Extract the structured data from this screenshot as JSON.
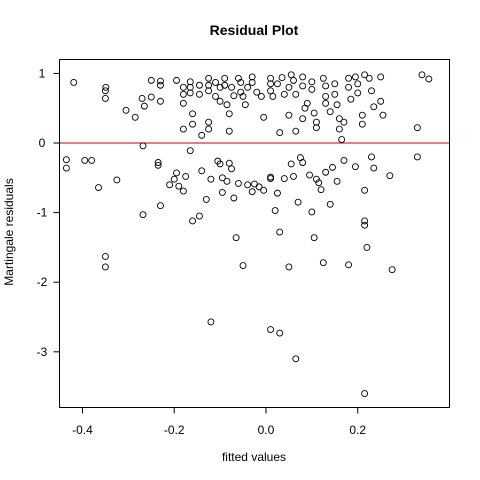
{
  "chart_data": {
    "type": "scatter",
    "title": "Residual Plot",
    "xlabel": "fitted values",
    "ylabel": "Martingale residuals",
    "xlim": [
      -0.45,
      0.4
    ],
    "ylim": [
      -3.8,
      1.2
    ],
    "xticks": [
      -0.4,
      -0.2,
      0.0,
      0.2
    ],
    "xtick_labels": [
      "-0.4",
      "-0.2",
      "0.0",
      "0.2"
    ],
    "yticks": [
      -3,
      -2,
      -1,
      0,
      1
    ],
    "ytick_labels": [
      "-3",
      "-2",
      "-1",
      "0",
      "1"
    ],
    "reference_line": {
      "y": 0,
      "color": "#c00000"
    },
    "grid": false,
    "legend": "none",
    "series": [
      {
        "points": [
          [
            -0.419,
            0.87
          ],
          [
            -0.349,
            0.8
          ],
          [
            -0.35,
            0.75
          ],
          [
            -0.35,
            0.64
          ],
          [
            -0.305,
            0.47
          ],
          [
            -0.285,
            0.37
          ],
          [
            -0.27,
            0.64
          ],
          [
            -0.265,
            0.53
          ],
          [
            -0.25,
            0.9
          ],
          [
            -0.25,
            0.66
          ],
          [
            -0.23,
            0.89
          ],
          [
            -0.23,
            0.83
          ],
          [
            -0.23,
            0.6
          ],
          [
            -0.195,
            0.9
          ],
          [
            -0.18,
            0.8
          ],
          [
            -0.18,
            0.7
          ],
          [
            -0.18,
            0.57
          ],
          [
            -0.18,
            0.2
          ],
          [
            -0.165,
            0.88
          ],
          [
            -0.165,
            0.8
          ],
          [
            -0.165,
            0.72
          ],
          [
            -0.16,
            0.42
          ],
          [
            -0.16,
            0.27
          ],
          [
            -0.145,
            0.83
          ],
          [
            -0.145,
            0.7
          ],
          [
            -0.14,
            0.11
          ],
          [
            -0.125,
            0.93
          ],
          [
            -0.125,
            0.83
          ],
          [
            -0.125,
            0.75
          ],
          [
            -0.125,
            0.3
          ],
          [
            -0.125,
            0.2
          ],
          [
            -0.11,
            0.87
          ],
          [
            -0.11,
            0.67
          ],
          [
            -0.1,
            0.8
          ],
          [
            -0.1,
            0.6
          ],
          [
            -0.09,
            0.93
          ],
          [
            -0.09,
            0.83
          ],
          [
            -0.085,
            0.55
          ],
          [
            -0.08,
            0.42
          ],
          [
            -0.08,
            0.17
          ],
          [
            -0.075,
            0.8
          ],
          [
            -0.07,
            0.68
          ],
          [
            -0.06,
            0.93
          ],
          [
            -0.055,
            0.87
          ],
          [
            -0.055,
            0.73
          ],
          [
            -0.05,
            0.67
          ],
          [
            -0.045,
            0.55
          ],
          [
            -0.04,
            0.8
          ],
          [
            -0.03,
            0.95
          ],
          [
            -0.03,
            0.87
          ],
          [
            -0.02,
            0.73
          ],
          [
            -0.01,
            0.67
          ],
          [
            -0.005,
            0.37
          ],
          [
            0.01,
            0.93
          ],
          [
            0.01,
            0.85
          ],
          [
            0.01,
            0.75
          ],
          [
            0.015,
            0.67
          ],
          [
            0.025,
            0.85
          ],
          [
            0.03,
            0.15
          ],
          [
            0.035,
            0.94
          ],
          [
            0.04,
            0.7
          ],
          [
            0.05,
            0.8
          ],
          [
            0.05,
            0.4
          ],
          [
            0.055,
            0.98
          ],
          [
            0.06,
            0.9
          ],
          [
            0.065,
            0.7
          ],
          [
            0.065,
            0.17
          ],
          [
            0.08,
            0.95
          ],
          [
            0.08,
            0.82
          ],
          [
            0.08,
            0.35
          ],
          [
            0.085,
            0.5
          ],
          [
            0.09,
            0.57
          ],
          [
            0.1,
            0.88
          ],
          [
            0.1,
            0.77
          ],
          [
            0.105,
            0.43
          ],
          [
            0.11,
            0.3
          ],
          [
            0.11,
            0.22
          ],
          [
            0.125,
            0.93
          ],
          [
            0.13,
            0.82
          ],
          [
            0.13,
            0.67
          ],
          [
            0.13,
            0.57
          ],
          [
            0.14,
            0.45
          ],
          [
            0.15,
            0.85
          ],
          [
            0.15,
            0.7
          ],
          [
            0.155,
            0.55
          ],
          [
            0.16,
            0.35
          ],
          [
            0.16,
            0.2
          ],
          [
            0.165,
            0.05
          ],
          [
            0.17,
            0.3
          ],
          [
            0.18,
            0.93
          ],
          [
            0.18,
            0.8
          ],
          [
            0.185,
            0.63
          ],
          [
            0.195,
            0.95
          ],
          [
            0.2,
            0.85
          ],
          [
            0.2,
            0.72
          ],
          [
            0.21,
            0.4
          ],
          [
            0.21,
            0.27
          ],
          [
            0.215,
            0.98
          ],
          [
            0.225,
            0.93
          ],
          [
            0.23,
            0.75
          ],
          [
            0.235,
            0.52
          ],
          [
            0.25,
            0.95
          ],
          [
            0.25,
            0.6
          ],
          [
            0.255,
            0.4
          ],
          [
            0.34,
            0.98
          ],
          [
            0.355,
            0.92
          ],
          [
            0.33,
            0.22
          ],
          [
            -0.435,
            -0.24
          ],
          [
            -0.435,
            -0.36
          ],
          [
            -0.395,
            -0.25
          ],
          [
            -0.38,
            -0.25
          ],
          [
            -0.365,
            -0.64
          ],
          [
            -0.325,
            -0.53
          ],
          [
            -0.268,
            -0.04
          ],
          [
            -0.268,
            -1.03
          ],
          [
            -0.235,
            -0.28
          ],
          [
            -0.235,
            -0.32
          ],
          [
            -0.23,
            -0.9
          ],
          [
            -0.21,
            -0.6
          ],
          [
            -0.2,
            -0.52
          ],
          [
            -0.195,
            -0.43
          ],
          [
            -0.19,
            -0.62
          ],
          [
            -0.18,
            -0.69
          ],
          [
            -0.175,
            -0.48
          ],
          [
            -0.165,
            -0.11
          ],
          [
            -0.16,
            -1.12
          ],
          [
            -0.145,
            -1.05
          ],
          [
            -0.14,
            -0.4
          ],
          [
            -0.13,
            -0.81
          ],
          [
            -0.12,
            -0.52
          ],
          [
            -0.105,
            -0.26
          ],
          [
            -0.1,
            -0.3
          ],
          [
            -0.095,
            -0.5
          ],
          [
            -0.095,
            -0.71
          ],
          [
            -0.085,
            -0.55
          ],
          [
            -0.08,
            -0.29
          ],
          [
            -0.075,
            -0.37
          ],
          [
            -0.07,
            -0.79
          ],
          [
            -0.065,
            -1.36
          ],
          [
            -0.06,
            -0.58
          ],
          [
            -0.05,
            -1.76
          ],
          [
            -0.04,
            -0.6
          ],
          [
            -0.03,
            -0.7
          ],
          [
            -0.025,
            -0.59
          ],
          [
            -0.015,
            -0.63
          ],
          [
            -0.005,
            -0.68
          ],
          [
            0.01,
            -0.49
          ],
          [
            0.01,
            -0.51
          ],
          [
            0.02,
            -0.97
          ],
          [
            0.025,
            -0.72
          ],
          [
            0.03,
            -1.28
          ],
          [
            0.04,
            -0.51
          ],
          [
            0.05,
            -1.78
          ],
          [
            0.055,
            -0.3
          ],
          [
            0.06,
            -0.48
          ],
          [
            0.07,
            -0.85
          ],
          [
            0.075,
            -0.21
          ],
          [
            0.08,
            -0.28
          ],
          [
            0.095,
            -0.46
          ],
          [
            0.1,
            -0.99
          ],
          [
            0.105,
            -1.36
          ],
          [
            0.11,
            -0.52
          ],
          [
            0.115,
            -0.57
          ],
          [
            0.12,
            -0.67
          ],
          [
            0.125,
            -1.72
          ],
          [
            0.13,
            -0.42
          ],
          [
            0.14,
            -0.88
          ],
          [
            0.145,
            -0.35
          ],
          [
            0.155,
            -0.55
          ],
          [
            0.17,
            -0.25
          ],
          [
            0.18,
            -1.75
          ],
          [
            0.195,
            -0.34
          ],
          [
            0.215,
            -0.68
          ],
          [
            0.215,
            -1.12
          ],
          [
            0.215,
            -1.18
          ],
          [
            0.22,
            -1.5
          ],
          [
            0.23,
            -0.2
          ],
          [
            0.235,
            -0.36
          ],
          [
            0.27,
            -0.47
          ],
          [
            0.275,
            -1.82
          ],
          [
            0.33,
            -0.2
          ],
          [
            -0.35,
            -1.63
          ],
          [
            -0.35,
            -1.78
          ],
          [
            -0.12,
            -2.57
          ],
          [
            0.01,
            -2.68
          ],
          [
            0.03,
            -2.73
          ],
          [
            0.065,
            -3.1
          ],
          [
            0.215,
            -3.6
          ]
        ]
      }
    ]
  }
}
